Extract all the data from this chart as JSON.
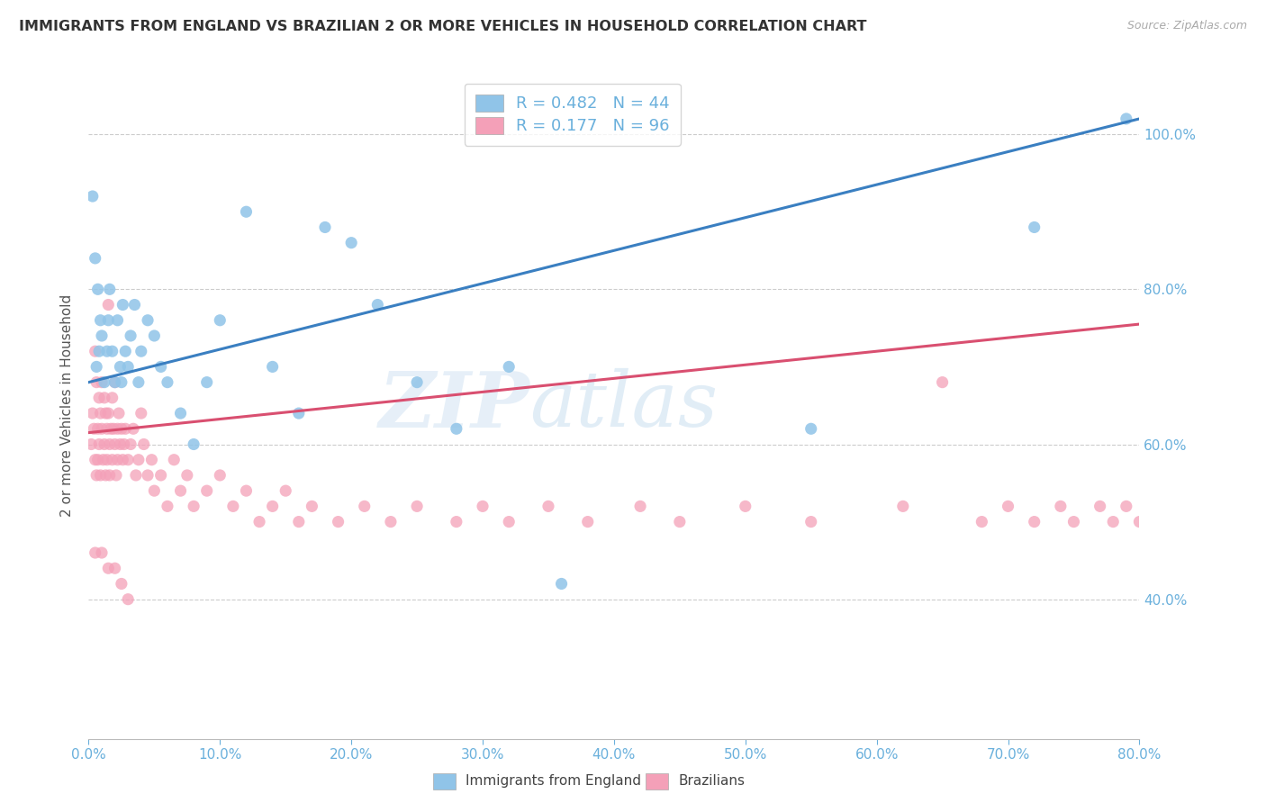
{
  "title": "IMMIGRANTS FROM ENGLAND VS BRAZILIAN 2 OR MORE VEHICLES IN HOUSEHOLD CORRELATION CHART",
  "source": "Source: ZipAtlas.com",
  "ylabel": "2 or more Vehicles in Household",
  "legend_label_1": "Immigrants from England",
  "legend_label_2": "Brazilians",
  "R1": 0.482,
  "N1": 44,
  "R2": 0.177,
  "N2": 96,
  "color_blue": "#90c4e8",
  "color_pink": "#f4a0b8",
  "color_line_blue": "#3a7fc1",
  "color_line_pink": "#d94f70",
  "color_axis_ticks": "#6ab0dc",
  "watermark_zip": "ZIP",
  "watermark_atlas": "atlas",
  "xlim": [
    0.0,
    0.8
  ],
  "ylim_lo": 0.22,
  "ylim_hi": 1.08,
  "xticks": [
    0.0,
    0.1,
    0.2,
    0.3,
    0.4,
    0.5,
    0.6,
    0.7,
    0.8
  ],
  "yticks": [
    0.4,
    0.6,
    0.8,
    1.0
  ],
  "blue_line_x0": 0.0,
  "blue_line_y0": 0.68,
  "blue_line_x1": 0.8,
  "blue_line_y1": 1.02,
  "pink_line_x0": 0.0,
  "pink_line_y0": 0.615,
  "pink_line_x1": 0.8,
  "pink_line_y1": 0.755,
  "blue_x": [
    0.003,
    0.005,
    0.006,
    0.007,
    0.008,
    0.009,
    0.01,
    0.012,
    0.014,
    0.015,
    0.016,
    0.018,
    0.02,
    0.022,
    0.024,
    0.025,
    0.026,
    0.028,
    0.03,
    0.032,
    0.035,
    0.038,
    0.04,
    0.045,
    0.05,
    0.055,
    0.06,
    0.07,
    0.08,
    0.09,
    0.1,
    0.12,
    0.14,
    0.16,
    0.18,
    0.2,
    0.22,
    0.25,
    0.28,
    0.32,
    0.36,
    0.55,
    0.72,
    0.79
  ],
  "blue_y": [
    0.92,
    0.84,
    0.7,
    0.8,
    0.72,
    0.76,
    0.74,
    0.68,
    0.72,
    0.76,
    0.8,
    0.72,
    0.68,
    0.76,
    0.7,
    0.68,
    0.78,
    0.72,
    0.7,
    0.74,
    0.78,
    0.68,
    0.72,
    0.76,
    0.74,
    0.7,
    0.68,
    0.64,
    0.6,
    0.68,
    0.76,
    0.9,
    0.7,
    0.64,
    0.88,
    0.86,
    0.78,
    0.68,
    0.62,
    0.7,
    0.42,
    0.62,
    0.88,
    1.02
  ],
  "pink_x": [
    0.002,
    0.003,
    0.004,
    0.005,
    0.005,
    0.006,
    0.006,
    0.007,
    0.007,
    0.008,
    0.008,
    0.009,
    0.009,
    0.01,
    0.01,
    0.011,
    0.012,
    0.012,
    0.013,
    0.013,
    0.014,
    0.014,
    0.015,
    0.015,
    0.016,
    0.016,
    0.017,
    0.018,
    0.018,
    0.019,
    0.02,
    0.02,
    0.021,
    0.022,
    0.022,
    0.023,
    0.024,
    0.025,
    0.026,
    0.027,
    0.028,
    0.03,
    0.032,
    0.034,
    0.036,
    0.038,
    0.04,
    0.042,
    0.045,
    0.048,
    0.05,
    0.055,
    0.06,
    0.065,
    0.07,
    0.075,
    0.08,
    0.09,
    0.1,
    0.11,
    0.12,
    0.13,
    0.14,
    0.15,
    0.16,
    0.17,
    0.19,
    0.21,
    0.23,
    0.25,
    0.28,
    0.3,
    0.32,
    0.35,
    0.38,
    0.42,
    0.45,
    0.5,
    0.55,
    0.62,
    0.65,
    0.68,
    0.7,
    0.72,
    0.74,
    0.75,
    0.77,
    0.78,
    0.79,
    0.8,
    0.005,
    0.01,
    0.015,
    0.02,
    0.025,
    0.03
  ],
  "pink_y": [
    0.6,
    0.64,
    0.62,
    0.58,
    0.72,
    0.56,
    0.68,
    0.62,
    0.58,
    0.66,
    0.6,
    0.56,
    0.64,
    0.68,
    0.62,
    0.58,
    0.66,
    0.6,
    0.56,
    0.64,
    0.62,
    0.58,
    0.78,
    0.64,
    0.6,
    0.56,
    0.62,
    0.66,
    0.58,
    0.62,
    0.68,
    0.6,
    0.56,
    0.62,
    0.58,
    0.64,
    0.6,
    0.62,
    0.58,
    0.6,
    0.62,
    0.58,
    0.6,
    0.62,
    0.56,
    0.58,
    0.64,
    0.6,
    0.56,
    0.58,
    0.54,
    0.56,
    0.52,
    0.58,
    0.54,
    0.56,
    0.52,
    0.54,
    0.56,
    0.52,
    0.54,
    0.5,
    0.52,
    0.54,
    0.5,
    0.52,
    0.5,
    0.52,
    0.5,
    0.52,
    0.5,
    0.52,
    0.5,
    0.52,
    0.5,
    0.52,
    0.5,
    0.52,
    0.5,
    0.52,
    0.68,
    0.5,
    0.52,
    0.5,
    0.52,
    0.5,
    0.52,
    0.5,
    0.52,
    0.5,
    0.46,
    0.46,
    0.44,
    0.44,
    0.42,
    0.4
  ]
}
